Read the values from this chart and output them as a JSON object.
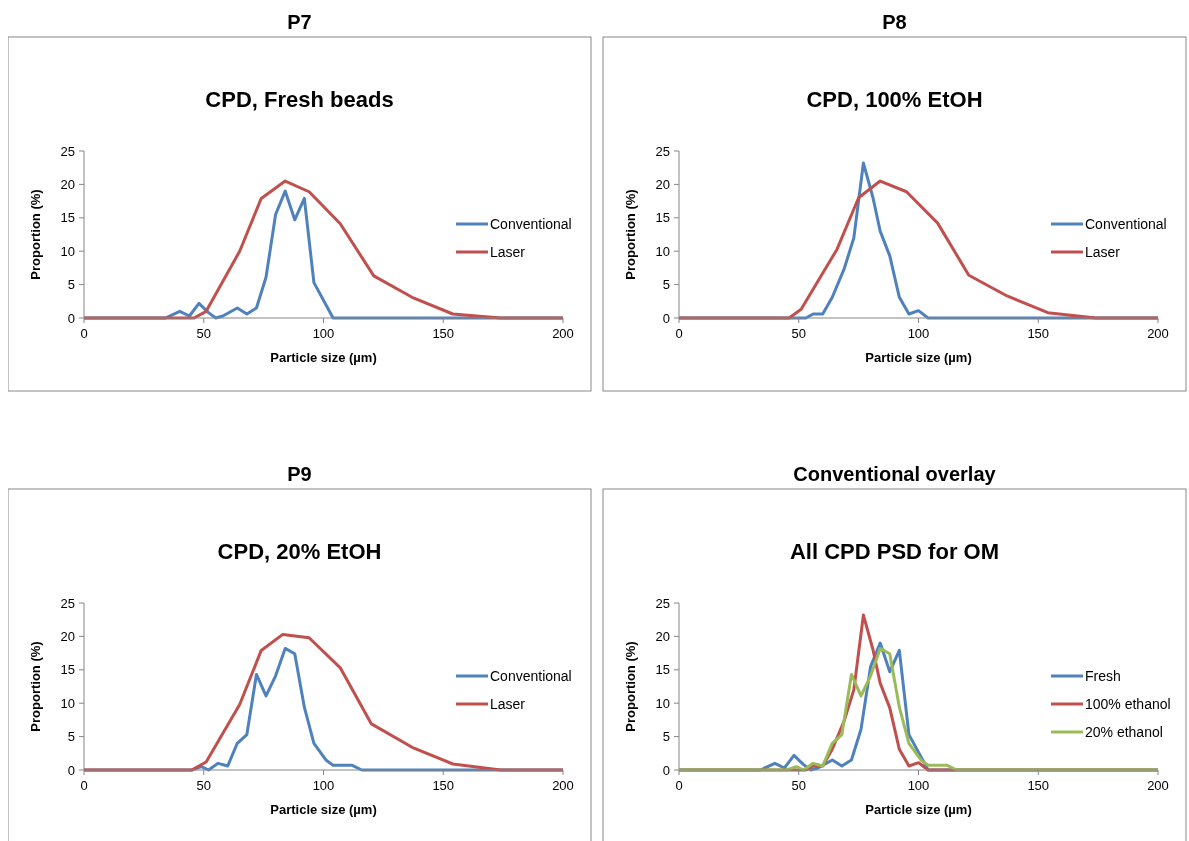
{
  "chart_data": [
    {
      "type": "line",
      "title": "P7",
      "subtitle": "CPD, Fresh beads",
      "xlabel": "Particle size (µm)",
      "ylabel": "Proportion (%)",
      "xlim": [
        0,
        200
      ],
      "xticks": [
        0,
        50,
        100,
        150,
        200
      ],
      "ylim": [
        0,
        25
      ],
      "yticks": [
        0,
        5,
        10,
        15,
        20,
        25
      ],
      "grid": false,
      "legend": "right",
      "series": [
        {
          "name": "Conventional",
          "color": "#4f81bd",
          "x": [
            0,
            34,
            40,
            44,
            48,
            52,
            55,
            58,
            64,
            68,
            72,
            76,
            80,
            84,
            88,
            92,
            96,
            104,
            200
          ],
          "values": [
            0,
            0,
            1.0,
            0.3,
            2.2,
            0.8,
            0,
            0.3,
            1.5,
            0.6,
            1.5,
            6.1,
            15.5,
            19,
            14.7,
            17.9,
            5.3,
            0,
            0
          ]
        },
        {
          "name": "Laser",
          "color": "#c0504d",
          "x": [
            0,
            46,
            51,
            65,
            74,
            84,
            94,
            107,
            121,
            137,
            154,
            174,
            200
          ],
          "values": [
            0,
            0,
            1.0,
            10.0,
            17.9,
            20.5,
            18.9,
            14.1,
            6.3,
            3.1,
            0.6,
            0,
            0
          ]
        }
      ]
    },
    {
      "type": "line",
      "title": "P8",
      "subtitle": "CPD, 100%  EtOH",
      "xlabel": "Particle size (µm)",
      "ylabel": "Proportion (%)",
      "xlim": [
        0,
        200
      ],
      "xticks": [
        0,
        50,
        100,
        150,
        200
      ],
      "ylim": [
        0,
        25
      ],
      "yticks": [
        0,
        5,
        10,
        15,
        20,
        25
      ],
      "grid": false,
      "legend": "right",
      "series": [
        {
          "name": "Conventional",
          "color": "#4f81bd",
          "x": [
            0,
            53,
            56,
            60,
            64,
            69,
            73,
            77,
            81,
            84,
            88,
            92,
            96,
            100,
            104,
            200
          ],
          "values": [
            0,
            0,
            0.6,
            0.6,
            3.1,
            7.4,
            12.0,
            23.2,
            18,
            13,
            9.3,
            3.1,
            0.6,
            1.1,
            0,
            0
          ]
        },
        {
          "name": "Laser",
          "color": "#c0504d",
          "x": [
            0,
            46,
            51,
            66,
            75,
            84,
            95,
            108,
            121,
            137,
            154,
            174,
            200
          ],
          "values": [
            0,
            0,
            1.3,
            10.3,
            18,
            20.5,
            18.9,
            14.2,
            6.4,
            3.3,
            0.8,
            0,
            0
          ]
        }
      ]
    },
    {
      "type": "line",
      "title": "P9",
      "subtitle": "CPD, 20%  EtOH",
      "xlabel": "Particle size (µm)",
      "ylabel": "Proportion (%)",
      "xlim": [
        0,
        200
      ],
      "xticks": [
        0,
        50,
        100,
        150,
        200
      ],
      "ylim": [
        0,
        25
      ],
      "yticks": [
        0,
        5,
        10,
        15,
        20,
        25
      ],
      "grid": false,
      "legend": "right",
      "series": [
        {
          "name": "Conventional",
          "color": "#4f81bd",
          "x": [
            0,
            45,
            49,
            52,
            56,
            60,
            64,
            68,
            72,
            76,
            80,
            84,
            88,
            92,
            96,
            101,
            104,
            112,
            116,
            200
          ],
          "values": [
            0,
            0,
            0.5,
            0,
            1.0,
            0.6,
            4.0,
            5.3,
            14.3,
            11.1,
            14.1,
            18.2,
            17.4,
            9.4,
            4.0,
            1.5,
            0.7,
            0.7,
            0,
            0
          ]
        },
        {
          "name": "Laser",
          "color": "#c0504d",
          "x": [
            0,
            45,
            51,
            65,
            74,
            83,
            94,
            107,
            120,
            137,
            154,
            174,
            200
          ],
          "values": [
            0,
            0,
            1.2,
            9.8,
            17.9,
            20.3,
            19.8,
            15.3,
            6.9,
            3.4,
            0.9,
            0,
            0
          ]
        }
      ]
    },
    {
      "type": "line",
      "title": "Conventional overlay",
      "subtitle": "All CPD PSD for OM",
      "xlabel": "Particle size (µm)",
      "ylabel": "Proportion (%)",
      "xlim": [
        0,
        200
      ],
      "xticks": [
        0,
        50,
        100,
        150,
        200
      ],
      "ylim": [
        0,
        25
      ],
      "yticks": [
        0,
        5,
        10,
        15,
        20,
        25
      ],
      "grid": false,
      "legend": "right",
      "series": [
        {
          "name": "Fresh",
          "color": "#4f81bd",
          "x": [
            0,
            34,
            40,
            44,
            48,
            52,
            55,
            58,
            64,
            68,
            72,
            76,
            80,
            84,
            88,
            92,
            96,
            104,
            200
          ],
          "values": [
            0,
            0,
            1.0,
            0.3,
            2.2,
            0.8,
            0,
            0.3,
            1.5,
            0.6,
            1.5,
            6.1,
            15.5,
            19,
            14.7,
            17.9,
            5.3,
            0,
            0
          ]
        },
        {
          "name": "100% ethanol",
          "color": "#c0504d",
          "x": [
            0,
            53,
            56,
            60,
            64,
            69,
            73,
            77,
            81,
            84,
            88,
            92,
            96,
            100,
            104,
            200
          ],
          "values": [
            0,
            0,
            0.6,
            0.6,
            3.1,
            7.4,
            12.0,
            23.2,
            18,
            13,
            9.3,
            3.1,
            0.6,
            1.1,
            0,
            0
          ]
        },
        {
          "name": "20% ethanol",
          "color": "#9bbb59",
          "x": [
            0,
            45,
            49,
            52,
            56,
            60,
            64,
            68,
            72,
            76,
            80,
            84,
            88,
            92,
            96,
            101,
            104,
            112,
            116,
            200
          ],
          "values": [
            0,
            0,
            0.5,
            0,
            1.0,
            0.6,
            4.0,
            5.3,
            14.3,
            11.1,
            14.1,
            18.2,
            17.4,
            9.4,
            4.0,
            1.5,
            0.7,
            0.7,
            0,
            0
          ]
        }
      ]
    }
  ]
}
